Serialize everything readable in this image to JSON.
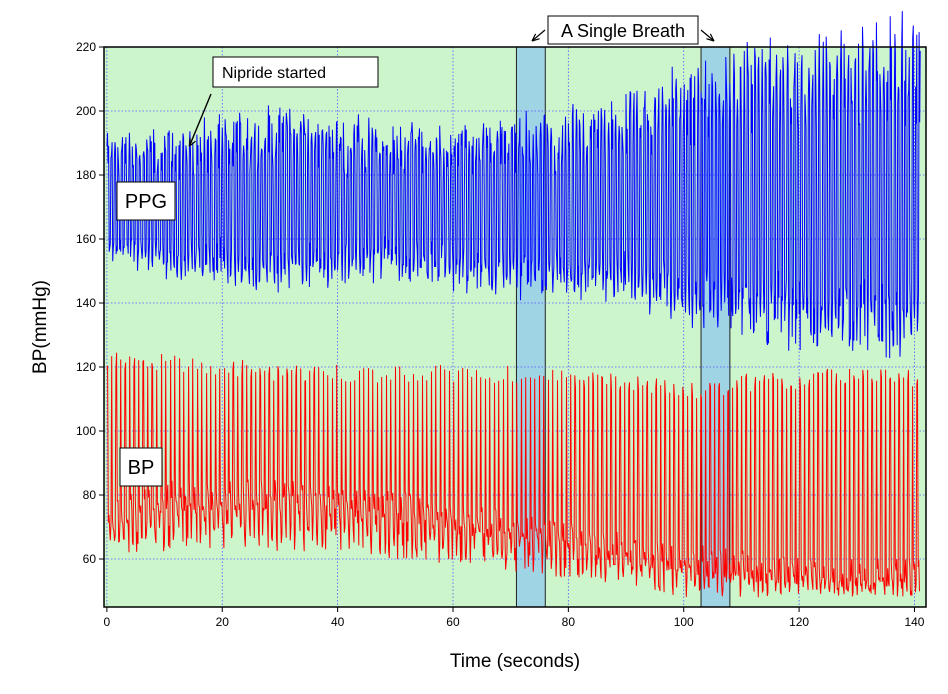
{
  "chart_data": {
    "type": "line",
    "xlabel": "Time (seconds)",
    "ylabel": "BP(mmHg)",
    "xlim": [
      -0.5,
      142
    ],
    "ylim": [
      45,
      220
    ],
    "xticks": [
      0,
      20,
      40,
      60,
      80,
      100,
      120,
      140
    ],
    "yticks": [
      60,
      80,
      100,
      120,
      140,
      160,
      180,
      200,
      220
    ],
    "grid": true,
    "background_color": "#ccf5cc",
    "grid_color": "#5555ff",
    "series": [
      {
        "name": "PPG",
        "color": "#0000ff",
        "description": "photoplethysmograph waveform, oscillating roughly between 150 and 190 early, widening to ~130-215 after 95 s",
        "envelope": [
          {
            "t": 0,
            "min": 155,
            "max": 188
          },
          {
            "t": 10,
            "min": 150,
            "max": 188
          },
          {
            "t": 20,
            "min": 148,
            "max": 192
          },
          {
            "t": 30,
            "min": 147,
            "max": 195
          },
          {
            "t": 40,
            "min": 148,
            "max": 192
          },
          {
            "t": 50,
            "min": 150,
            "max": 190
          },
          {
            "t": 60,
            "min": 147,
            "max": 190
          },
          {
            "t": 70,
            "min": 145,
            "max": 192
          },
          {
            "t": 80,
            "min": 143,
            "max": 193
          },
          {
            "t": 90,
            "min": 143,
            "max": 198
          },
          {
            "t": 100,
            "min": 136,
            "max": 205
          },
          {
            "t": 110,
            "min": 132,
            "max": 210
          },
          {
            "t": 120,
            "min": 128,
            "max": 212
          },
          {
            "t": 130,
            "min": 128,
            "max": 215
          },
          {
            "t": 141,
            "min": 125,
            "max": 218
          }
        ]
      },
      {
        "name": "BP",
        "color": "#ff0000",
        "description": "arterial blood pressure waveform, systolic ~115-122, diastolic mean drifting from ~80 down to ~55",
        "envelope": [
          {
            "t": 0,
            "min": 62,
            "max": 122,
            "mid": 72
          },
          {
            "t": 10,
            "min": 62,
            "max": 122,
            "mid": 80
          },
          {
            "t": 20,
            "min": 62,
            "max": 120,
            "mid": 80
          },
          {
            "t": 30,
            "min": 62,
            "max": 118,
            "mid": 80
          },
          {
            "t": 40,
            "min": 62,
            "max": 118,
            "mid": 78
          },
          {
            "t": 50,
            "min": 60,
            "max": 118,
            "mid": 77
          },
          {
            "t": 60,
            "min": 58,
            "max": 118,
            "mid": 73
          },
          {
            "t": 70,
            "min": 56,
            "max": 118,
            "mid": 70
          },
          {
            "t": 80,
            "min": 54,
            "max": 116,
            "mid": 67
          },
          {
            "t": 90,
            "min": 52,
            "max": 115,
            "mid": 63
          },
          {
            "t": 100,
            "min": 48,
            "max": 112,
            "mid": 60
          },
          {
            "t": 110,
            "min": 48,
            "max": 115,
            "mid": 58
          },
          {
            "t": 120,
            "min": 48,
            "max": 116,
            "mid": 56
          },
          {
            "t": 130,
            "min": 48,
            "max": 117,
            "mid": 55
          },
          {
            "t": 141,
            "min": 48,
            "max": 117,
            "mid": 55
          }
        ]
      }
    ],
    "shaded_regions": [
      {
        "x0": 71,
        "x1": 76,
        "color": "#9fd4e4"
      },
      {
        "x0": 103,
        "x1": 108,
        "color": "#9fd4e4"
      }
    ],
    "annotations": [
      {
        "text": "A Single Breath",
        "kind": "boxed-title"
      },
      {
        "text": "Nipride started",
        "kind": "boxed-callout",
        "arrow_to_x": 14,
        "arrow_to_y": 190
      },
      {
        "text": "PPG",
        "kind": "series-label"
      },
      {
        "text": "BP",
        "kind": "series-label"
      }
    ]
  }
}
